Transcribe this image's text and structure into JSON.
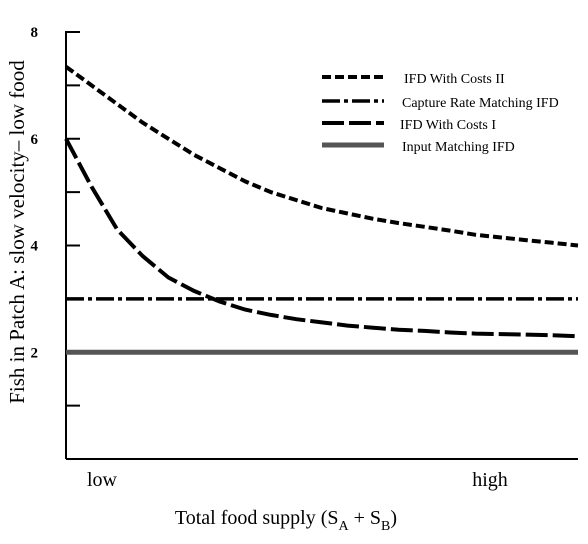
{
  "chart_data": {
    "type": "line",
    "title": "",
    "ylabel": "Fish in Patch A: slow velocity– low food",
    "xlabel": {
      "main": "Total food supply (S",
      "sub_a": "A",
      "plus": " + S",
      "sub_b": "B",
      "close": ")"
    },
    "x_tick_labels": {
      "low": "low",
      "high": "high"
    },
    "xlim": [
      0,
      1
    ],
    "ylim": [
      0,
      8
    ],
    "y_ticks": [
      {
        "value": 1,
        "label": ""
      },
      {
        "value": 2,
        "label": "2"
      },
      {
        "value": 3,
        "label": ""
      },
      {
        "value": 4,
        "label": "4"
      },
      {
        "value": 5,
        "label": ""
      },
      {
        "value": 6,
        "label": "6"
      },
      {
        "value": 7,
        "label": ""
      },
      {
        "value": 8,
        "label": "8"
      }
    ],
    "grid": false,
    "legend_position": "top-right",
    "series": [
      {
        "name": "IFD With Costs II",
        "style": "short-dash",
        "x": [
          0,
          0.05,
          0.1,
          0.15,
          0.2,
          0.25,
          0.3,
          0.35,
          0.4,
          0.45,
          0.5,
          0.55,
          0.6,
          0.65,
          0.7,
          0.75,
          0.8,
          0.85,
          0.9,
          0.95,
          1.0
        ],
        "y": [
          7.35,
          7.0,
          6.65,
          6.3,
          6.0,
          5.7,
          5.45,
          5.2,
          5.0,
          4.85,
          4.7,
          4.6,
          4.5,
          4.42,
          4.35,
          4.28,
          4.2,
          4.15,
          4.1,
          4.05,
          4.0
        ]
      },
      {
        "name": "Capture Rate Matching IFD",
        "style": "dash-dot",
        "x": [
          0,
          1.0
        ],
        "y": [
          3.0,
          3.0
        ]
      },
      {
        "name": "IFD With Costs I",
        "style": "long-dash",
        "x": [
          0,
          0.05,
          0.1,
          0.15,
          0.2,
          0.25,
          0.3,
          0.35,
          0.4,
          0.45,
          0.5,
          0.55,
          0.6,
          0.65,
          0.7,
          0.75,
          0.8,
          0.85,
          0.9,
          0.95,
          1.0
        ],
        "y": [
          6.0,
          5.1,
          4.3,
          3.8,
          3.4,
          3.15,
          2.95,
          2.8,
          2.7,
          2.62,
          2.56,
          2.5,
          2.46,
          2.42,
          2.4,
          2.37,
          2.35,
          2.34,
          2.33,
          2.32,
          2.3
        ]
      },
      {
        "name": "Input Matching IFD",
        "style": "solid-thick",
        "x": [
          0,
          1.0
        ],
        "y": [
          2.0,
          2.0
        ]
      }
    ]
  }
}
